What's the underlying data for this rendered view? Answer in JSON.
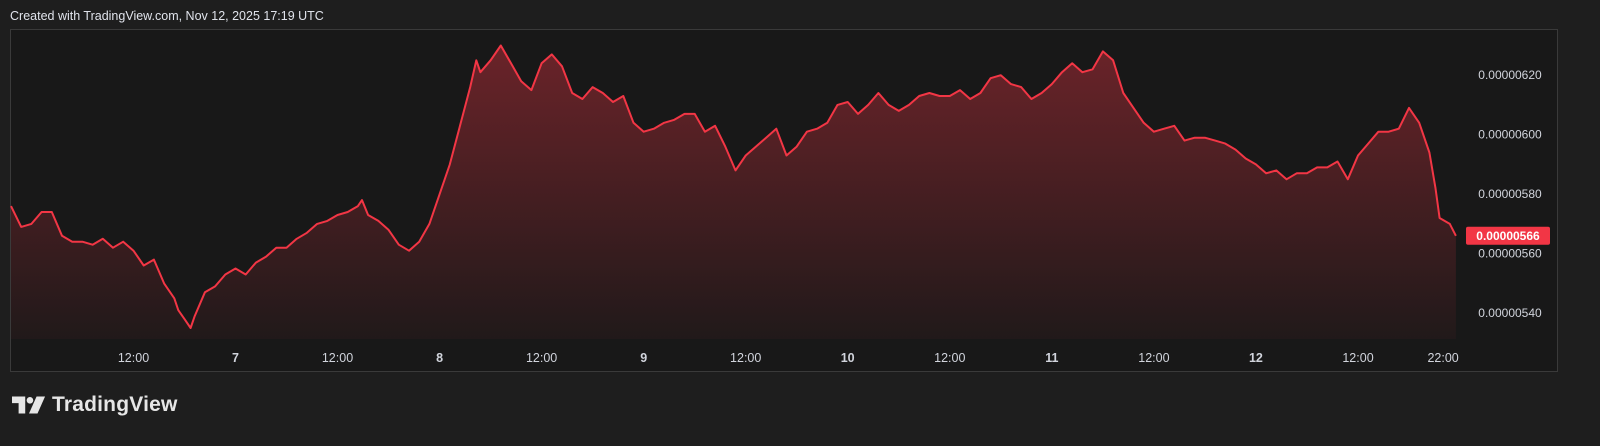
{
  "header": {
    "text": "Created with TradingView.com, Nov 12, 2025 17:19 UTC"
  },
  "brand": {
    "logo_icon": "tradingview-logo-icon",
    "name": "TradingView"
  },
  "colors": {
    "line": "#f23645",
    "badge": "#f23645",
    "background": "#1e1e1e"
  },
  "chart_data": {
    "type": "area",
    "x_ticks": [
      {
        "label": "12:00",
        "t": 0.5,
        "bold": false
      },
      {
        "label": "7",
        "t": 1.0,
        "bold": true
      },
      {
        "label": "12:00",
        "t": 1.5,
        "bold": false
      },
      {
        "label": "8",
        "t": 2.0,
        "bold": true
      },
      {
        "label": "12:00",
        "t": 2.5,
        "bold": false
      },
      {
        "label": "9",
        "t": 3.0,
        "bold": true
      },
      {
        "label": "12:00",
        "t": 3.5,
        "bold": false
      },
      {
        "label": "10",
        "t": 4.0,
        "bold": true
      },
      {
        "label": "12:00",
        "t": 4.5,
        "bold": false
      },
      {
        "label": "11",
        "t": 5.0,
        "bold": true
      },
      {
        "label": "12:00",
        "t": 5.5,
        "bold": false
      },
      {
        "label": "12",
        "t": 6.0,
        "bold": true
      },
      {
        "label": "12:00",
        "t": 6.5,
        "bold": false
      },
      {
        "label": "22:00",
        "t": 6.917,
        "bold": false
      }
    ],
    "y_ticks": [
      {
        "label": "0.00000620",
        "v": 6.2
      },
      {
        "label": "0.00000600",
        "v": 6.0
      },
      {
        "label": "0.00000580",
        "v": 5.8
      },
      {
        "label": "0.00000560",
        "v": 5.6
      },
      {
        "label": "0.00000540",
        "v": 5.4
      }
    ],
    "last_price": {
      "label": "0.00000566",
      "v": 5.66
    },
    "x_range": [
      -0.1,
      7.0
    ],
    "y_range": [
      5.313,
      6.352
    ],
    "series": [
      {
        "points": [
          [
            -0.1,
            5.76
          ],
          [
            -0.05,
            5.69
          ],
          [
            0.0,
            5.7
          ],
          [
            0.05,
            5.74
          ],
          [
            0.1,
            5.74
          ],
          [
            0.15,
            5.66
          ],
          [
            0.2,
            5.64
          ],
          [
            0.25,
            5.64
          ],
          [
            0.3,
            5.63
          ],
          [
            0.35,
            5.65
          ],
          [
            0.4,
            5.62
          ],
          [
            0.45,
            5.64
          ],
          [
            0.5,
            5.61
          ],
          [
            0.55,
            5.56
          ],
          [
            0.6,
            5.58
          ],
          [
            0.65,
            5.5
          ],
          [
            0.7,
            5.45
          ],
          [
            0.72,
            5.41
          ],
          [
            0.75,
            5.38
          ],
          [
            0.78,
            5.35
          ],
          [
            0.8,
            5.39
          ],
          [
            0.85,
            5.47
          ],
          [
            0.9,
            5.49
          ],
          [
            0.95,
            5.53
          ],
          [
            1.0,
            5.55
          ],
          [
            1.05,
            5.53
          ],
          [
            1.1,
            5.57
          ],
          [
            1.15,
            5.59
          ],
          [
            1.2,
            5.62
          ],
          [
            1.25,
            5.62
          ],
          [
            1.3,
            5.65
          ],
          [
            1.35,
            5.67
          ],
          [
            1.4,
            5.7
          ],
          [
            1.45,
            5.71
          ],
          [
            1.5,
            5.73
          ],
          [
            1.55,
            5.74
          ],
          [
            1.6,
            5.76
          ],
          [
            1.62,
            5.78
          ],
          [
            1.65,
            5.73
          ],
          [
            1.7,
            5.71
          ],
          [
            1.75,
            5.68
          ],
          [
            1.8,
            5.63
          ],
          [
            1.85,
            5.61
          ],
          [
            1.9,
            5.64
          ],
          [
            1.95,
            5.7
          ],
          [
            2.0,
            5.8
          ],
          [
            2.05,
            5.9
          ],
          [
            2.1,
            6.03
          ],
          [
            2.15,
            6.16
          ],
          [
            2.18,
            6.25
          ],
          [
            2.2,
            6.21
          ],
          [
            2.25,
            6.25
          ],
          [
            2.3,
            6.3
          ],
          [
            2.35,
            6.24
          ],
          [
            2.4,
            6.18
          ],
          [
            2.45,
            6.15
          ],
          [
            2.5,
            6.24
          ],
          [
            2.55,
            6.27
          ],
          [
            2.6,
            6.23
          ],
          [
            2.65,
            6.14
          ],
          [
            2.7,
            6.12
          ],
          [
            2.75,
            6.16
          ],
          [
            2.8,
            6.14
          ],
          [
            2.85,
            6.11
          ],
          [
            2.9,
            6.13
          ],
          [
            2.95,
            6.04
          ],
          [
            3.0,
            6.01
          ],
          [
            3.05,
            6.02
          ],
          [
            3.1,
            6.04
          ],
          [
            3.15,
            6.05
          ],
          [
            3.2,
            6.07
          ],
          [
            3.25,
            6.07
          ],
          [
            3.3,
            6.01
          ],
          [
            3.35,
            6.03
          ],
          [
            3.4,
            5.96
          ],
          [
            3.45,
            5.88
          ],
          [
            3.5,
            5.93
          ],
          [
            3.55,
            5.96
          ],
          [
            3.6,
            5.99
          ],
          [
            3.65,
            6.02
          ],
          [
            3.7,
            5.93
          ],
          [
            3.75,
            5.96
          ],
          [
            3.8,
            6.01
          ],
          [
            3.85,
            6.02
          ],
          [
            3.9,
            6.04
          ],
          [
            3.95,
            6.1
          ],
          [
            4.0,
            6.11
          ],
          [
            4.05,
            6.07
          ],
          [
            4.1,
            6.1
          ],
          [
            4.15,
            6.14
          ],
          [
            4.2,
            6.1
          ],
          [
            4.25,
            6.08
          ],
          [
            4.3,
            6.1
          ],
          [
            4.35,
            6.13
          ],
          [
            4.4,
            6.14
          ],
          [
            4.45,
            6.13
          ],
          [
            4.5,
            6.13
          ],
          [
            4.55,
            6.15
          ],
          [
            4.6,
            6.12
          ],
          [
            4.65,
            6.14
          ],
          [
            4.7,
            6.19
          ],
          [
            4.75,
            6.2
          ],
          [
            4.8,
            6.17
          ],
          [
            4.85,
            6.16
          ],
          [
            4.9,
            6.12
          ],
          [
            4.95,
            6.14
          ],
          [
            5.0,
            6.17
          ],
          [
            5.05,
            6.21
          ],
          [
            5.1,
            6.24
          ],
          [
            5.15,
            6.21
          ],
          [
            5.2,
            6.22
          ],
          [
            5.25,
            6.28
          ],
          [
            5.3,
            6.25
          ],
          [
            5.35,
            6.14
          ],
          [
            5.4,
            6.09
          ],
          [
            5.45,
            6.04
          ],
          [
            5.5,
            6.01
          ],
          [
            5.55,
            6.02
          ],
          [
            5.6,
            6.03
          ],
          [
            5.65,
            5.98
          ],
          [
            5.7,
            5.99
          ],
          [
            5.75,
            5.99
          ],
          [
            5.8,
            5.98
          ],
          [
            5.85,
            5.97
          ],
          [
            5.9,
            5.95
          ],
          [
            5.95,
            5.92
          ],
          [
            6.0,
            5.9
          ],
          [
            6.05,
            5.87
          ],
          [
            6.1,
            5.88
          ],
          [
            6.15,
            5.85
          ],
          [
            6.2,
            5.87
          ],
          [
            6.25,
            5.87
          ],
          [
            6.3,
            5.89
          ],
          [
            6.35,
            5.89
          ],
          [
            6.4,
            5.91
          ],
          [
            6.45,
            5.85
          ],
          [
            6.5,
            5.93
          ],
          [
            6.55,
            5.97
          ],
          [
            6.6,
            6.01
          ],
          [
            6.65,
            6.01
          ],
          [
            6.7,
            6.02
          ],
          [
            6.75,
            6.09
          ],
          [
            6.8,
            6.04
          ],
          [
            6.85,
            5.94
          ],
          [
            6.88,
            5.82
          ],
          [
            6.9,
            5.72
          ],
          [
            6.95,
            5.7
          ],
          [
            6.98,
            5.66
          ]
        ]
      }
    ]
  }
}
